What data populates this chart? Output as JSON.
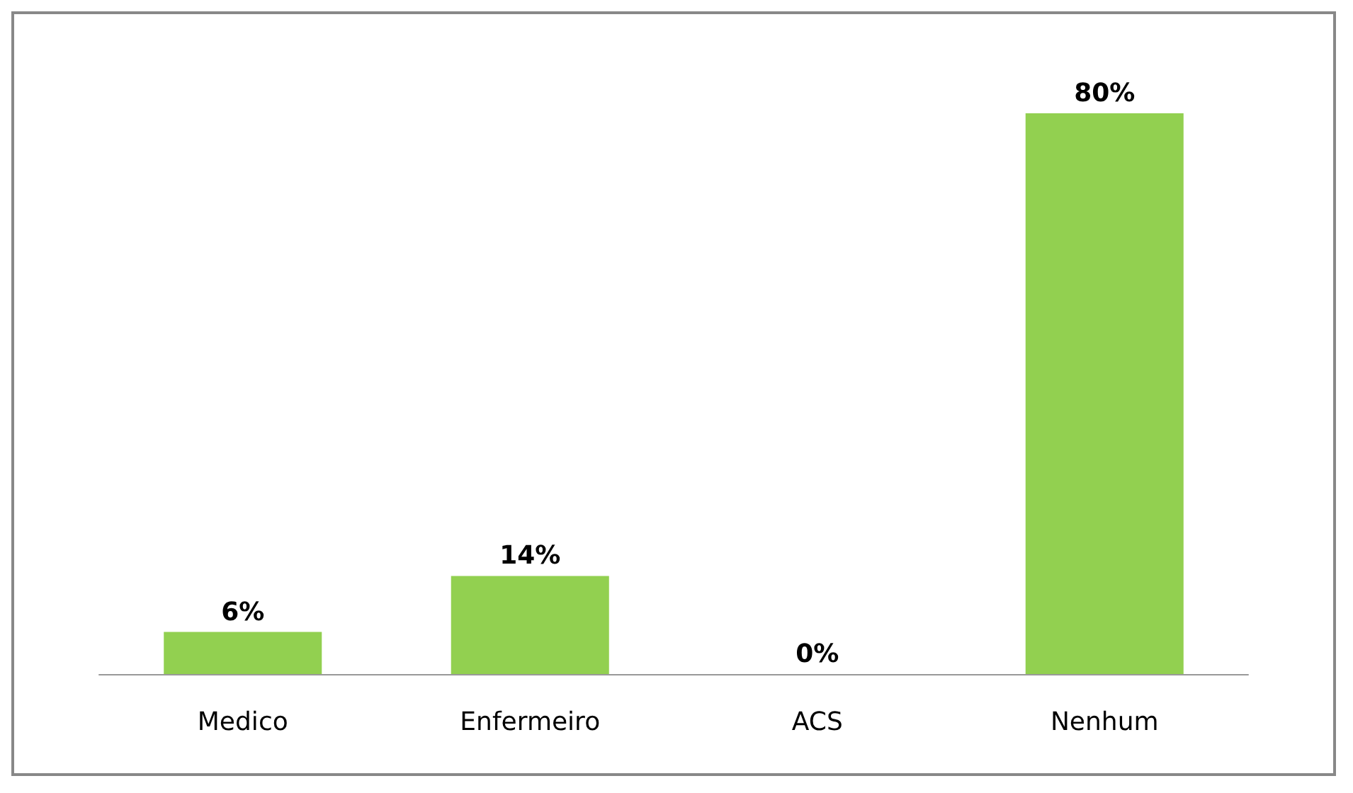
{
  "chart_data": {
    "type": "bar",
    "categories": [
      "Medico",
      "Enfermeiro",
      "ACS",
      "Nenhum"
    ],
    "values": [
      6,
      14,
      0,
      80
    ],
    "color": "#92d050",
    "value_labels": [
      "6%",
      "14%",
      "0%",
      "80%"
    ]
  }
}
